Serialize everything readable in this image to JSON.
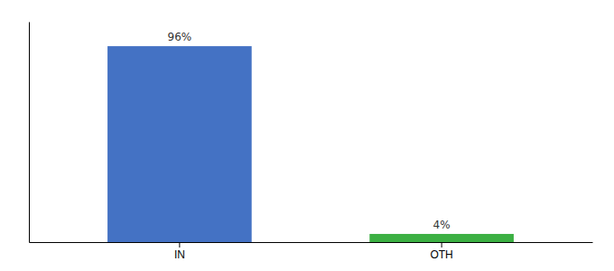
{
  "chart_data": {
    "type": "bar",
    "categories": [
      "IN",
      "OTH"
    ],
    "values": [
      96,
      4
    ],
    "value_labels": [
      "96%",
      "4%"
    ],
    "colors": [
      "#4472c4",
      "#3cb043"
    ],
    "ylim": [
      0,
      108
    ],
    "data_labels": true,
    "tick_labels": "x"
  }
}
